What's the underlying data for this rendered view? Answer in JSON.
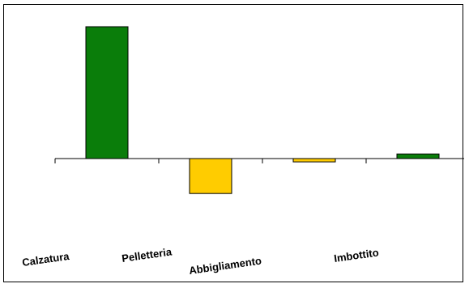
{
  "chart_data": {
    "type": "bar",
    "title": "",
    "xlabel": "",
    "ylabel": "",
    "categories": [
      "Calzatura",
      "Pelletteria",
      "Abbigliamento",
      "Imbottito"
    ],
    "values": [
      100,
      -26.5,
      -2.5,
      3.5
    ],
    "ylim": [
      -60,
      100
    ],
    "grid": false,
    "legend": "none",
    "colors": {
      "positive": "#0a7d0a",
      "negative": "#ffcc00",
      "outline": "#000000"
    }
  }
}
